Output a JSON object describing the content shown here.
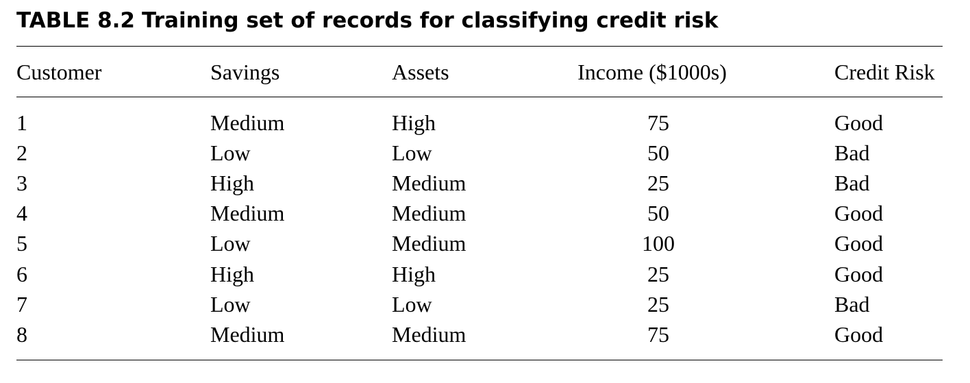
{
  "caption": {
    "label": "TABLE 8.2",
    "title": "Training set of records for classifying credit risk"
  },
  "table": {
    "columns": [
      "Customer",
      "Savings",
      "Assets",
      "Income ($1000s)",
      "Credit Risk"
    ],
    "rows": [
      [
        "1",
        "Medium",
        "High",
        "75",
        "Good"
      ],
      [
        "2",
        "Low",
        "Low",
        "50",
        "Bad"
      ],
      [
        "3",
        "High",
        "Medium",
        "25",
        "Bad"
      ],
      [
        "4",
        "Medium",
        "Medium",
        "50",
        "Good"
      ],
      [
        "5",
        "Low",
        "Medium",
        "100",
        "Good"
      ],
      [
        "6",
        "High",
        "High",
        "25",
        "Good"
      ],
      [
        "7",
        "Low",
        "Low",
        "25",
        "Bad"
      ],
      [
        "8",
        "Medium",
        "Medium",
        "75",
        "Good"
      ]
    ]
  }
}
